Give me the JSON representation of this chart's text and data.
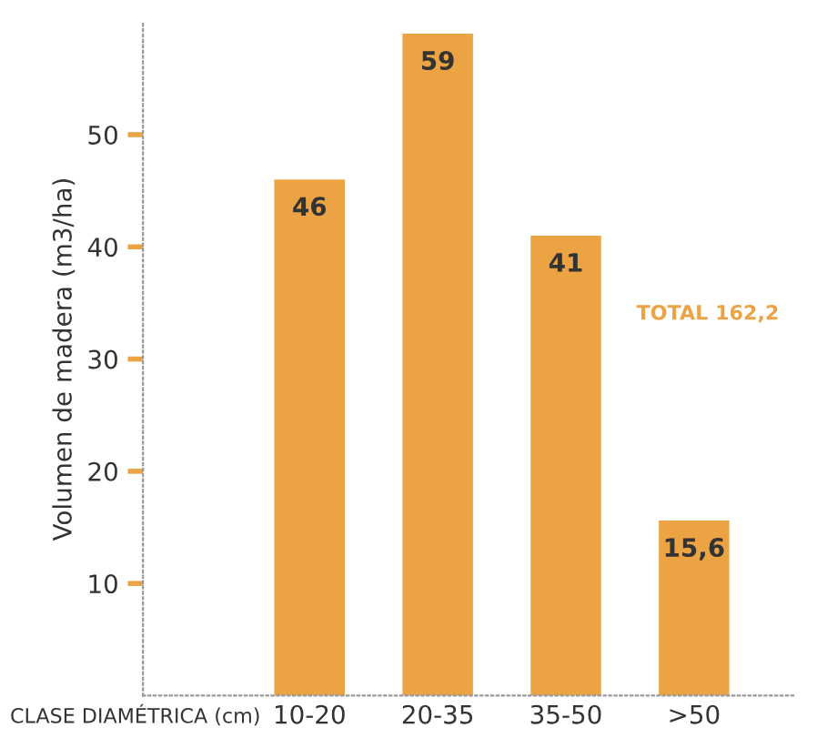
{
  "chart_data": {
    "type": "bar",
    "xlabel": "CLASE DIAMÉTRICA (cm)",
    "ylabel": "Volumen de madera (m3/ha)",
    "categories": [
      "10-20",
      "20-35",
      "35-50",
      ">50"
    ],
    "values": [
      46,
      59,
      41,
      15.6
    ],
    "value_labels": [
      "46",
      "59",
      "41",
      "15,6"
    ],
    "color": "#eba344",
    "ylim": [
      0,
      60
    ],
    "yticks": [
      10,
      20,
      30,
      40,
      50
    ],
    "grid": false,
    "annotations": [
      "TOTAL 162,2"
    ]
  }
}
